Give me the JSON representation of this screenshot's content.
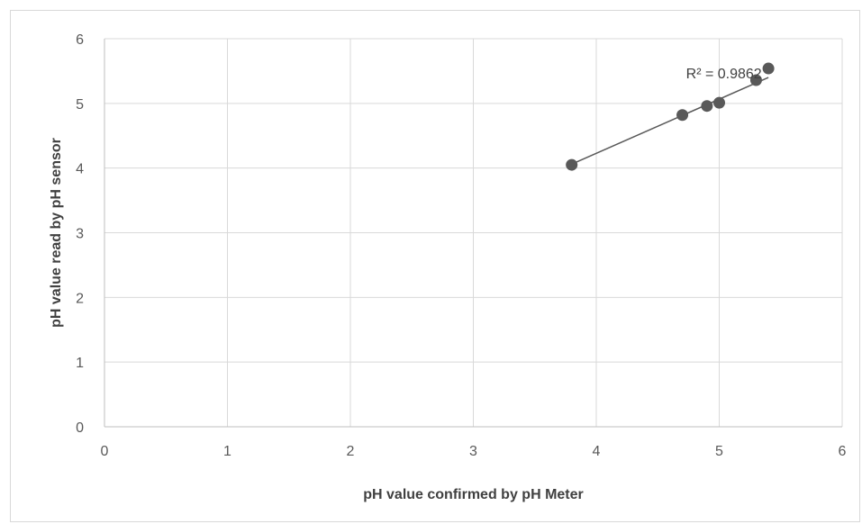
{
  "chart_data": {
    "type": "scatter",
    "title": "",
    "xlabel": "pH value confirmed by pH Meter",
    "ylabel": "pH value read by pH sensor",
    "xlim": [
      0,
      6
    ],
    "ylim": [
      0,
      6
    ],
    "xticks": [
      "0",
      "1",
      "2",
      "3",
      "4",
      "5",
      "6"
    ],
    "yticks": [
      "0",
      "1",
      "2",
      "3",
      "4",
      "5",
      "6"
    ],
    "grid": true,
    "legend": "none",
    "series": [
      {
        "x": [
          3.8,
          4.7,
          4.9,
          5.0,
          5.3,
          5.4
        ],
        "y": [
          4.05,
          4.82,
          4.96,
          5.01,
          5.36,
          5.54
        ],
        "color": "#595959"
      }
    ],
    "trendline": {
      "type": "linear",
      "x": [
        3.8,
        5.4
      ],
      "y": [
        4.06,
        5.4
      ],
      "color": "#595959"
    },
    "annotations": [
      {
        "text": "R² = 0.9862",
        "x": 4.73,
        "y": 5.39
      }
    ]
  }
}
